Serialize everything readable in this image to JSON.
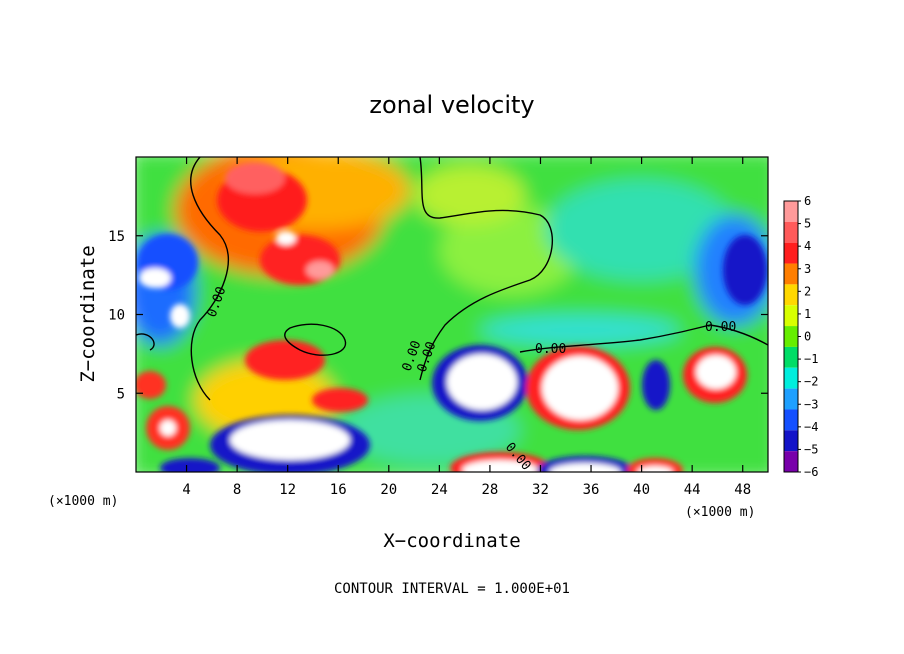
{
  "chart_data": {
    "type": "heatmap",
    "title": "zonal velocity",
    "xlabel": "X−coordinate",
    "ylabel": "Z−coordinate",
    "x_unit_label": "(×1000 m)",
    "y_unit_label": "(×1000 m)",
    "xlim": [
      0,
      50
    ],
    "ylim": [
      0,
      20
    ],
    "x_ticks": [
      4,
      8,
      12,
      16,
      20,
      24,
      28,
      32,
      36,
      40,
      44,
      48
    ],
    "y_ticks": [
      5,
      10,
      15
    ],
    "x_tick_labels": [
      "4",
      "8",
      "12",
      "16",
      "20",
      "24",
      "28",
      "32",
      "36",
      "40",
      "44",
      "48"
    ],
    "y_tick_labels": [
      "5",
      "10",
      "15"
    ],
    "colorbar": {
      "levels": [
        6,
        5,
        4,
        3,
        2,
        1,
        0,
        -1,
        -2,
        -3,
        -4,
        -5,
        -6
      ],
      "labels": [
        "6",
        "5",
        "4",
        "3",
        "2",
        "1",
        "0",
        "−1",
        "−2",
        "−3",
        "−4",
        "−5",
        "−6"
      ],
      "colors": [
        "#ff9a9a",
        "#ff5a5a",
        "#ff1e1e",
        "#ff7e00",
        "#ffd800",
        "#d8ff00",
        "#66ee00",
        "#00dd66",
        "#00eedd",
        "#1ea0ff",
        "#1450ff",
        "#1414c8",
        "#7800aa"
      ]
    },
    "contour_labels": [
      "0.00",
      "0.00",
      "0.00",
      "0.00",
      "0.00",
      "0.00"
    ],
    "footer": "CONTOUR INTERVAL = 1.000E+01",
    "grid": false
  }
}
